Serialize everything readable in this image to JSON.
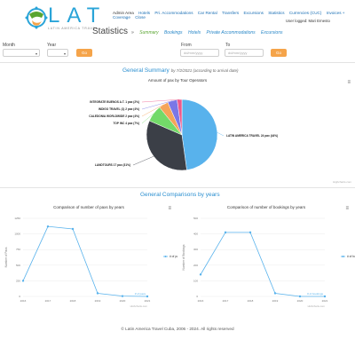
{
  "brand": {
    "name": "LAT",
    "tagline": "LATIN AMERICA TRAVEL"
  },
  "nav": {
    "items": [
      "Admin Area",
      "Hotels",
      "Pri. Accommodations",
      "Car Rental",
      "Transfers",
      "Excursions",
      "Statistics",
      "Currencies (CUC)",
      "Invoices +",
      "Coverage",
      "Close"
    ],
    "logged_in": "User logged: Mari Ernesto"
  },
  "page": {
    "title": "Statistics",
    "sub_tabs": [
      "Summary",
      "Bookings",
      "Hotels",
      "Private Accommodations",
      "Excursions"
    ],
    "sub_sep": "»"
  },
  "filters": {
    "month_label": "Month",
    "year_label": "Year",
    "go1": "Go",
    "from_label": "From",
    "to_label": "To",
    "from_placeholder": "dd/mm/yyyy",
    "to_placeholder": "dd/mm/yyyy",
    "go2": "Go"
  },
  "summary": {
    "title": "General Summary",
    "note": "by 7/2/2021 (according to arrival date)",
    "menu_icon": "≡",
    "credit": "Highcharts.com"
  },
  "comparisons": {
    "title": "General Comparisons by years"
  },
  "chart_data": [
    {
      "type": "pie",
      "title": "Amount of pax by Tour Operators",
      "slices": [
        {
          "label": "LATIN AMERICA TRAVEL 24 pax (44%)",
          "value": 44,
          "color": "#58b2ec"
        },
        {
          "label": "LANDTOURS 17 pax (31%)",
          "value": 31,
          "color": "#3b3f47"
        },
        {
          "label": "TOP INC 4 pax (7%)",
          "value": 7,
          "color": "#73da69"
        },
        {
          "label": "CALEDONIA WORLDWIDE 2 pax (4%)",
          "value": 4,
          "color": "#f5a458"
        },
        {
          "label": "INDIGO TRAVEL (1) 2 pax (4%)",
          "value": 4,
          "color": "#7b77e6"
        },
        {
          "label": "INTEGRATE BUENOS A.T. 1 pax (2%)",
          "value": 2,
          "color": "#ee5a8c"
        }
      ]
    },
    {
      "type": "line",
      "title": "Comparison of number of paxs by years",
      "ylabel": "Number of Paxs",
      "series": [
        {
          "name": "# of paxs",
          "values": [
            250,
            1120,
            1080,
            50,
            5,
            0
          ]
        }
      ],
      "categories": [
        "2016",
        "2017",
        "2018",
        "2019",
        "2020",
        "2021"
      ],
      "yticks": [
        "0",
        "250",
        "500",
        "750",
        "1000",
        "1250"
      ],
      "ylim": [
        0,
        1250
      ],
      "end_label": "# of paxs",
      "credit": "Highcharts.com"
    },
    {
      "type": "line",
      "title": "Comparison of number of bookings by years",
      "ylabel": "Number of Bookings",
      "series": [
        {
          "name": "# of bookings",
          "values": [
            140,
            410,
            410,
            20,
            0,
            0
          ]
        }
      ],
      "categories": [
        "2016",
        "2017",
        "2018",
        "2019",
        "2020",
        "2021"
      ],
      "yticks": [
        "0",
        "100",
        "200",
        "300",
        "400",
        "500"
      ],
      "ylim": [
        0,
        500
      ],
      "end_label": "# of bookings",
      "credit": "Highcharts.com"
    }
  ],
  "footer": "© Latin America Travel Cuba, 2006 - 2024. All rights reserved"
}
